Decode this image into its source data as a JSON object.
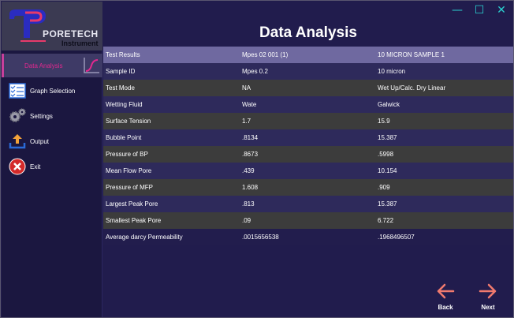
{
  "window": {
    "controls": {
      "minimize": "—",
      "maximize": "☐",
      "close": "✕"
    },
    "accent_color": "#2ad0cf"
  },
  "logo": {
    "name": "PORETECH",
    "sub": "Instrument"
  },
  "sidebar": {
    "items": [
      {
        "label": "Data Analysis",
        "icon": "curve-chart-icon",
        "active": true
      },
      {
        "label": "Graph Selection",
        "icon": "checklist-icon"
      },
      {
        "label": "Settings",
        "icon": "gears-icon"
      },
      {
        "label": "Output",
        "icon": "upload-icon"
      },
      {
        "label": "Exit",
        "icon": "close-circle-icon"
      }
    ],
    "active_color": "#e2288e"
  },
  "page": {
    "title": "Data Analysis"
  },
  "table": {
    "rows": [
      [
        "Test Results",
        "Mpes 02 001 (1)",
        "10 MICRON SAMPLE 1"
      ],
      [
        "Sample ID",
        "Mpes 0.2",
        "10 micron"
      ],
      [
        "Test Mode",
        "NA",
        "Wet Up/Calc. Dry Linear"
      ],
      [
        "Wetting Fluid",
        "Wate",
        "Galwick"
      ],
      [
        "Surface Tension",
        "1.7",
        "15.9"
      ],
      [
        "Bubble Point",
        ".8134",
        "15.387"
      ],
      [
        "Pressure of BP",
        ".8673",
        ".5998"
      ],
      [
        "Mean Flow Pore",
        ".439",
        "10.154"
      ],
      [
        "Pressure of MFP",
        "1.608",
        ".909"
      ],
      [
        "Largest Peak Pore",
        ".813",
        "15.387"
      ],
      [
        "Smallest Peak Pore",
        ".09",
        "6.722"
      ],
      [
        "Average darcy Permeability",
        ".0015656538",
        ".1968496507"
      ]
    ]
  },
  "footer": {
    "back_label": "Back",
    "next_label": "Next",
    "arrow_color": "#f07a6e"
  }
}
